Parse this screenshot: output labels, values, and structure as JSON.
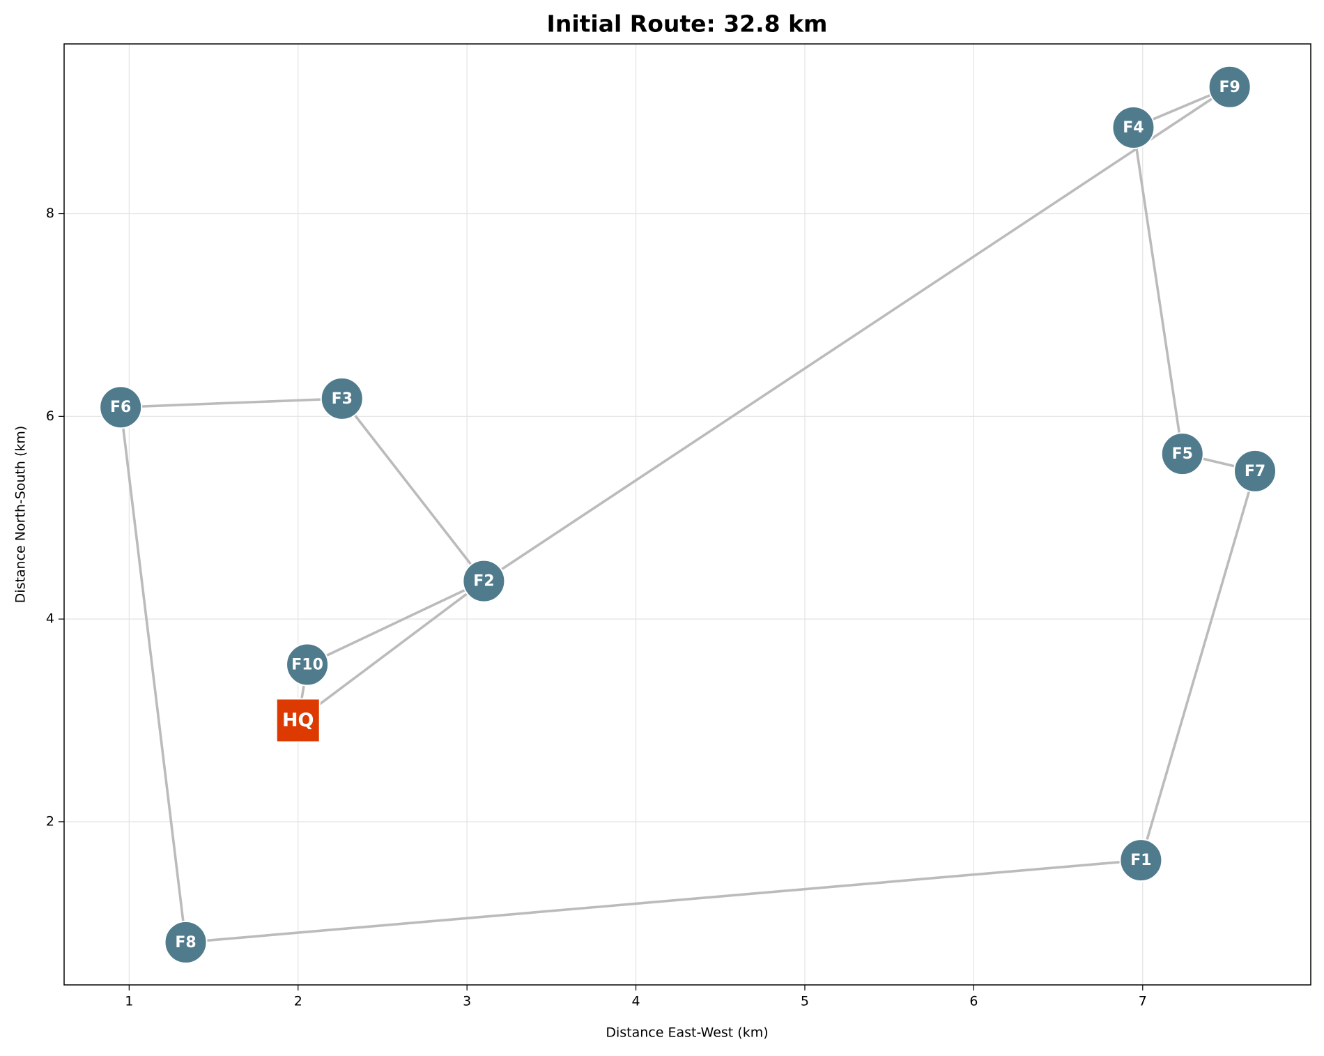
{
  "chart_data": {
    "type": "route",
    "title": "Initial Route: 32.8 km",
    "x_label": "Distance East-West (km)",
    "y_label": "Distance North-South (km)",
    "labels": [
      "HQ",
      "F1",
      "F2",
      "F3",
      "F4",
      "F5",
      "F6",
      "F7",
      "F8",
      "F9",
      "F10"
    ],
    "x": [
      2.0,
      6.99,
      3.1,
      2.26,
      6.945,
      7.235,
      0.95,
      7.665,
      1.335,
      7.515,
      2.055
    ],
    "y": [
      3.0,
      1.62,
      4.375,
      6.175,
      8.85,
      5.63,
      6.09,
      5.46,
      0.81,
      9.25,
      3.55
    ],
    "markers": [
      "square",
      "circle",
      "circle",
      "circle",
      "circle",
      "circle",
      "circle",
      "circle",
      "circle",
      "circle",
      "circle"
    ],
    "colors": [
      "#dc3a00",
      "#4f7b8d",
      "#4f7b8d",
      "#4f7b8d",
      "#4f7b8d",
      "#4f7b8d",
      "#4f7b8d",
      "#4f7b8d",
      "#4f7b8d",
      "#4f7b8d",
      "#4f7b8d"
    ],
    "route": [
      "HQ",
      "F2",
      "F9",
      "F4",
      "F5",
      "F7",
      "F1",
      "F8",
      "F6",
      "F3",
      "F2",
      "F10",
      "HQ"
    ],
    "route_color": "#bbbbbb",
    "xlim": [
      0.615,
      7.995
    ],
    "ylim": [
      0.39,
      9.675
    ],
    "xticks": [
      1,
      2,
      3,
      4,
      5,
      6,
      7
    ],
    "yticks": [
      2,
      4,
      6,
      8
    ],
    "grid": true
  }
}
